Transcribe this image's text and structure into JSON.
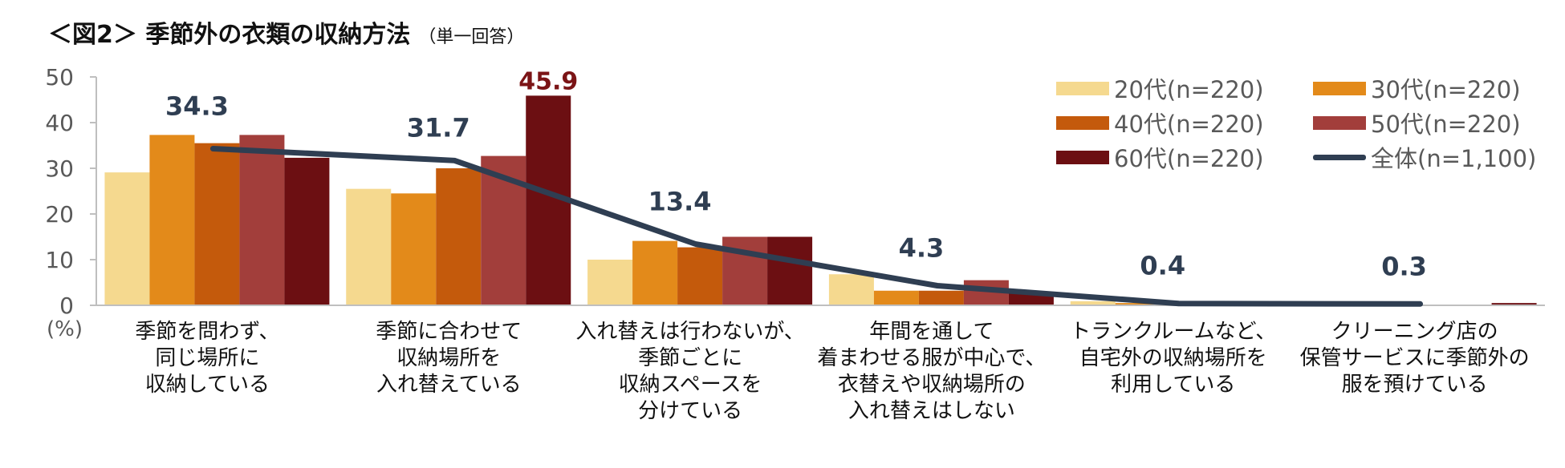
{
  "title": {
    "main": "＜図2＞ 季節外の衣類の収納方法",
    "sub": "（単一回答）"
  },
  "chart_data": {
    "type": "bar",
    "title": "季節外の衣類の収納方法",
    "ylabel": "(%)",
    "ylim": [
      0,
      50
    ],
    "yticks": [
      "0",
      "10",
      "20",
      "30",
      "40",
      "50"
    ],
    "categories": [
      "季節を問わず、\n同じ場所に\n収納している",
      "季節に合わせて\n収納場所を\n入れ替えている",
      "入れ替えは行わないが、\n季節ごとに\n収納スペースを\n分けている",
      "年間を通して\n着まわせる服が中心で、\n衣替えや収納場所の\n入れ替えはしない",
      "トランクルームなど、\n自宅外の収納場所を\n利用している",
      "クリーニング店の\n保管サービスに季節外の\n服を預けている"
    ],
    "series": [
      {
        "name": "20代(n=220)",
        "color": "#F5D98F",
        "values": [
          29.1,
          25.5,
          10.0,
          6.8,
          0.9,
          0.0
        ]
      },
      {
        "name": "30代(n=220)",
        "color": "#E38A1A",
        "values": [
          37.3,
          24.5,
          14.1,
          3.2,
          0.5,
          0.5
        ]
      },
      {
        "name": "40代(n=220)",
        "color": "#C45A0C",
        "values": [
          35.5,
          30.0,
          12.7,
          3.2,
          0.0,
          0.0
        ]
      },
      {
        "name": "50代(n=220)",
        "color": "#A23E3B",
        "values": [
          37.3,
          32.7,
          15.0,
          5.5,
          0.0,
          0.0
        ]
      },
      {
        "name": "60代(n=220)",
        "color": "#6C0F12",
        "values": [
          32.3,
          45.9,
          15.0,
          2.7,
          0.5,
          0.5
        ]
      }
    ],
    "line": {
      "name": "全体(n=1,100)",
      "color": "#2F3E52",
      "values": [
        34.3,
        31.7,
        13.4,
        4.3,
        0.4,
        0.3
      ]
    },
    "line_labels": [
      "34.3",
      "31.7",
      "13.4",
      "4.3",
      "0.4",
      "0.3"
    ],
    "highlight_label": {
      "text": "45.9",
      "color": "#7B1416"
    },
    "legend_position": "top-right"
  }
}
